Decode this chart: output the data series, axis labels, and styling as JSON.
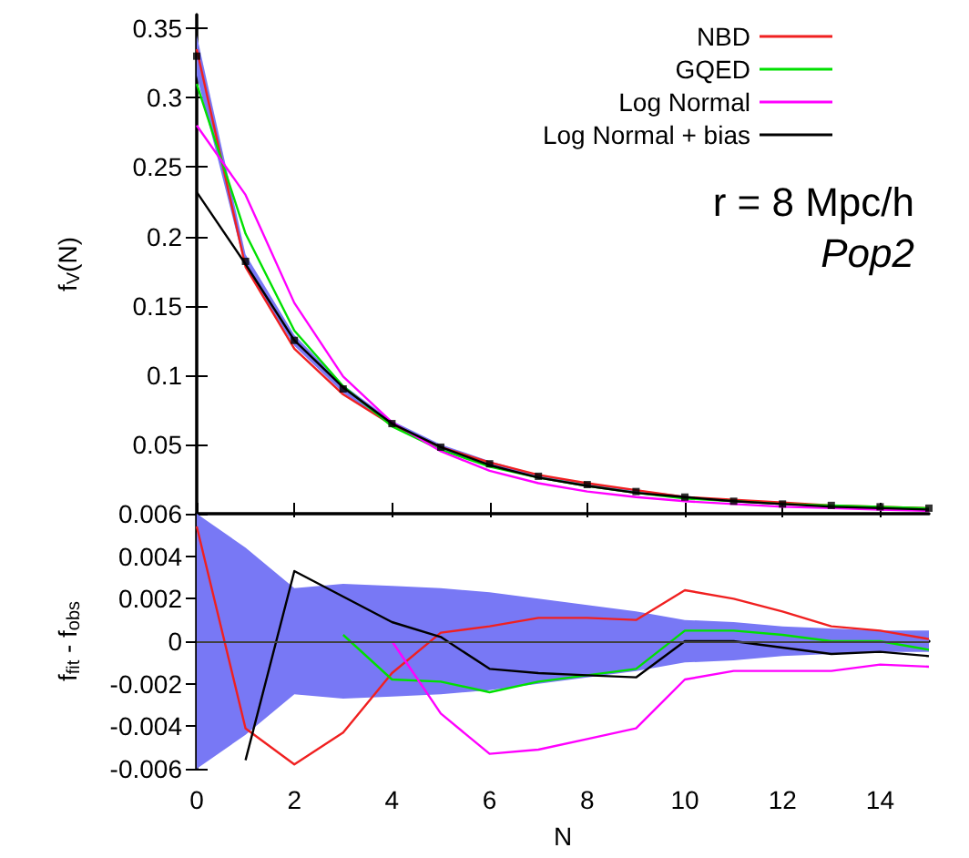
{
  "chart_data": [
    {
      "type": "line",
      "ylabel": "f$_{V}$(N)",
      "x": [
        0,
        1,
        2,
        3,
        4,
        5,
        6,
        7,
        8,
        9,
        10,
        11,
        12,
        13,
        14,
        15
      ],
      "xlim": [
        0,
        15
      ],
      "xticks": [
        0,
        2,
        4,
        6,
        8,
        10,
        12,
        14
      ],
      "ylim": [
        0,
        0.36
      ],
      "yticks": [
        {
          "value": 0,
          "label": null
        },
        0.05,
        0.1,
        0.15,
        0.2,
        0.25,
        0.3,
        0.35
      ],
      "tick_labels": "y",
      "legend": "top right",
      "annotations": [
        "r = 8 Mpc/h",
        "Pop2"
      ],
      "series": [
        {
          "color": "#7878f5",
          "values": [
            null,
            null,
            null,
            null,
            null,
            null,
            null,
            null,
            null,
            null,
            null,
            null,
            null,
            null,
            null,
            null
          ],
          "lower": [
            0.316,
            0.177,
            0.121,
            0.087,
            0.063,
            0.046,
            0.035,
            0.026,
            0.02,
            0.015,
            0.011,
            0.0085,
            0.0065,
            0.0055,
            0.0045,
            0.0035
          ],
          "upper": [
            0.345,
            0.187,
            0.129,
            0.093,
            0.067,
            0.05,
            0.038,
            0.028,
            0.022,
            0.017,
            0.013,
            0.0095,
            0.0075,
            0.0065,
            0.0055,
            0.0045
          ]
        },
        {
          "name": "NBD",
          "color": "#f02020",
          "values": [
            0.335,
            0.178,
            0.119,
            0.086,
            0.064,
            0.048,
            0.037,
            0.028,
            0.022,
            0.017,
            0.012,
            0.01,
            0.008,
            0.006,
            0.005,
            0.004
          ]
        },
        {
          "name": "GQED",
          "color": "#00e000",
          "values": [
            0.31,
            0.202,
            0.132,
            0.092,
            0.063,
            0.046,
            0.034,
            0.026,
            0.02,
            0.015,
            0.011,
            0.009,
            0.007,
            0.006,
            0.005,
            0.004
          ]
        },
        {
          "name": "Log Normal",
          "color": "#ff00ff",
          "values": [
            0.28,
            0.23,
            0.152,
            0.099,
            0.066,
            0.045,
            0.031,
            0.022,
            0.016,
            0.012,
            0.009,
            0.007,
            0.005,
            0.004,
            0.003,
            0.002
          ]
        },
        {
          "name": "Log Normal + bias",
          "color": "#000000",
          "values": [
            0.232,
            0.18,
            0.125,
            0.091,
            0.065,
            0.048,
            0.035,
            0.026,
            0.02,
            0.015,
            0.012,
            0.009,
            0.007,
            0.005,
            0.004,
            0.003
          ]
        },
        {
          "type": "scatter",
          "marker": "square",
          "color": "#000000",
          "values": [
            0.33,
            0.182,
            0.125,
            0.09,
            0.065,
            0.048,
            0.036,
            0.027,
            0.021,
            0.016,
            0.012,
            0.009,
            0.007,
            0.006,
            0.005,
            0.004
          ]
        }
      ]
    },
    {
      "type": "line",
      "xlabel": "N",
      "ylabel": "f$_{fit}$ - f$_{obs}$",
      "x": [
        0,
        1,
        2,
        3,
        4,
        5,
        6,
        7,
        8,
        9,
        10,
        11,
        12,
        13,
        14,
        15
      ],
      "xlim": [
        0,
        15
      ],
      "xticks": [
        0,
        2,
        4,
        6,
        8,
        10,
        12,
        14
      ],
      "ylim": [
        -0.006,
        0.006
      ],
      "yticks": [
        -0.006,
        -0.004,
        -0.002,
        0,
        0.002,
        0.004,
        0.006
      ],
      "ref_lines": [
        {
          "axis": "y",
          "value": 0,
          "color": "#404040"
        }
      ],
      "series": [
        {
          "color": "#7878f5",
          "values": [
            null,
            null,
            null,
            null,
            null,
            null,
            null,
            null,
            null,
            null,
            null,
            null,
            null,
            null,
            null,
            null
          ],
          "lower": [
            -0.006,
            -0.0044,
            -0.0025,
            -0.0027,
            -0.0026,
            -0.0025,
            -0.0023,
            -0.002,
            -0.0017,
            -0.0014,
            -0.001,
            -0.0009,
            -0.0007,
            -0.0006,
            -0.0005,
            -0.0005
          ],
          "upper": [
            0.006,
            0.0044,
            0.0025,
            0.0027,
            0.0026,
            0.0025,
            0.0023,
            0.002,
            0.0017,
            0.0014,
            0.001,
            0.0009,
            0.0007,
            0.0006,
            0.0005,
            0.0005
          ]
        },
        {
          "color": "#f02020",
          "values": [
            0.0054,
            -0.0041,
            -0.0058,
            -0.0043,
            -0.0015,
            0.0004,
            0.0007,
            0.0011,
            0.0011,
            0.001,
            0.0024,
            0.002,
            0.0014,
            0.0007,
            0.0005,
            0.0001
          ]
        },
        {
          "color": "#00e000",
          "values": [
            null,
            null,
            null,
            0.0003,
            -0.0018,
            -0.0019,
            -0.0024,
            -0.0019,
            -0.0016,
            -0.0013,
            0.0005,
            0.0005,
            0.0003,
            0,
            0,
            -0.0004
          ]
        },
        {
          "color": "#ff00ff",
          "values": [
            null,
            null,
            null,
            null,
            0,
            -0.0034,
            -0.0053,
            -0.0051,
            -0.0046,
            -0.0041,
            -0.0018,
            -0.0014,
            -0.0014,
            -0.0014,
            -0.0011,
            -0.0012
          ]
        },
        {
          "color": "#000000",
          "values": [
            null,
            -0.0056,
            0.0033,
            0.0021,
            0.0009,
            0.0002,
            -0.0013,
            -0.0015,
            -0.0016,
            -0.0017,
            0,
            0,
            -0.0003,
            -0.0006,
            -0.0005,
            -0.0007
          ]
        }
      ]
    }
  ]
}
